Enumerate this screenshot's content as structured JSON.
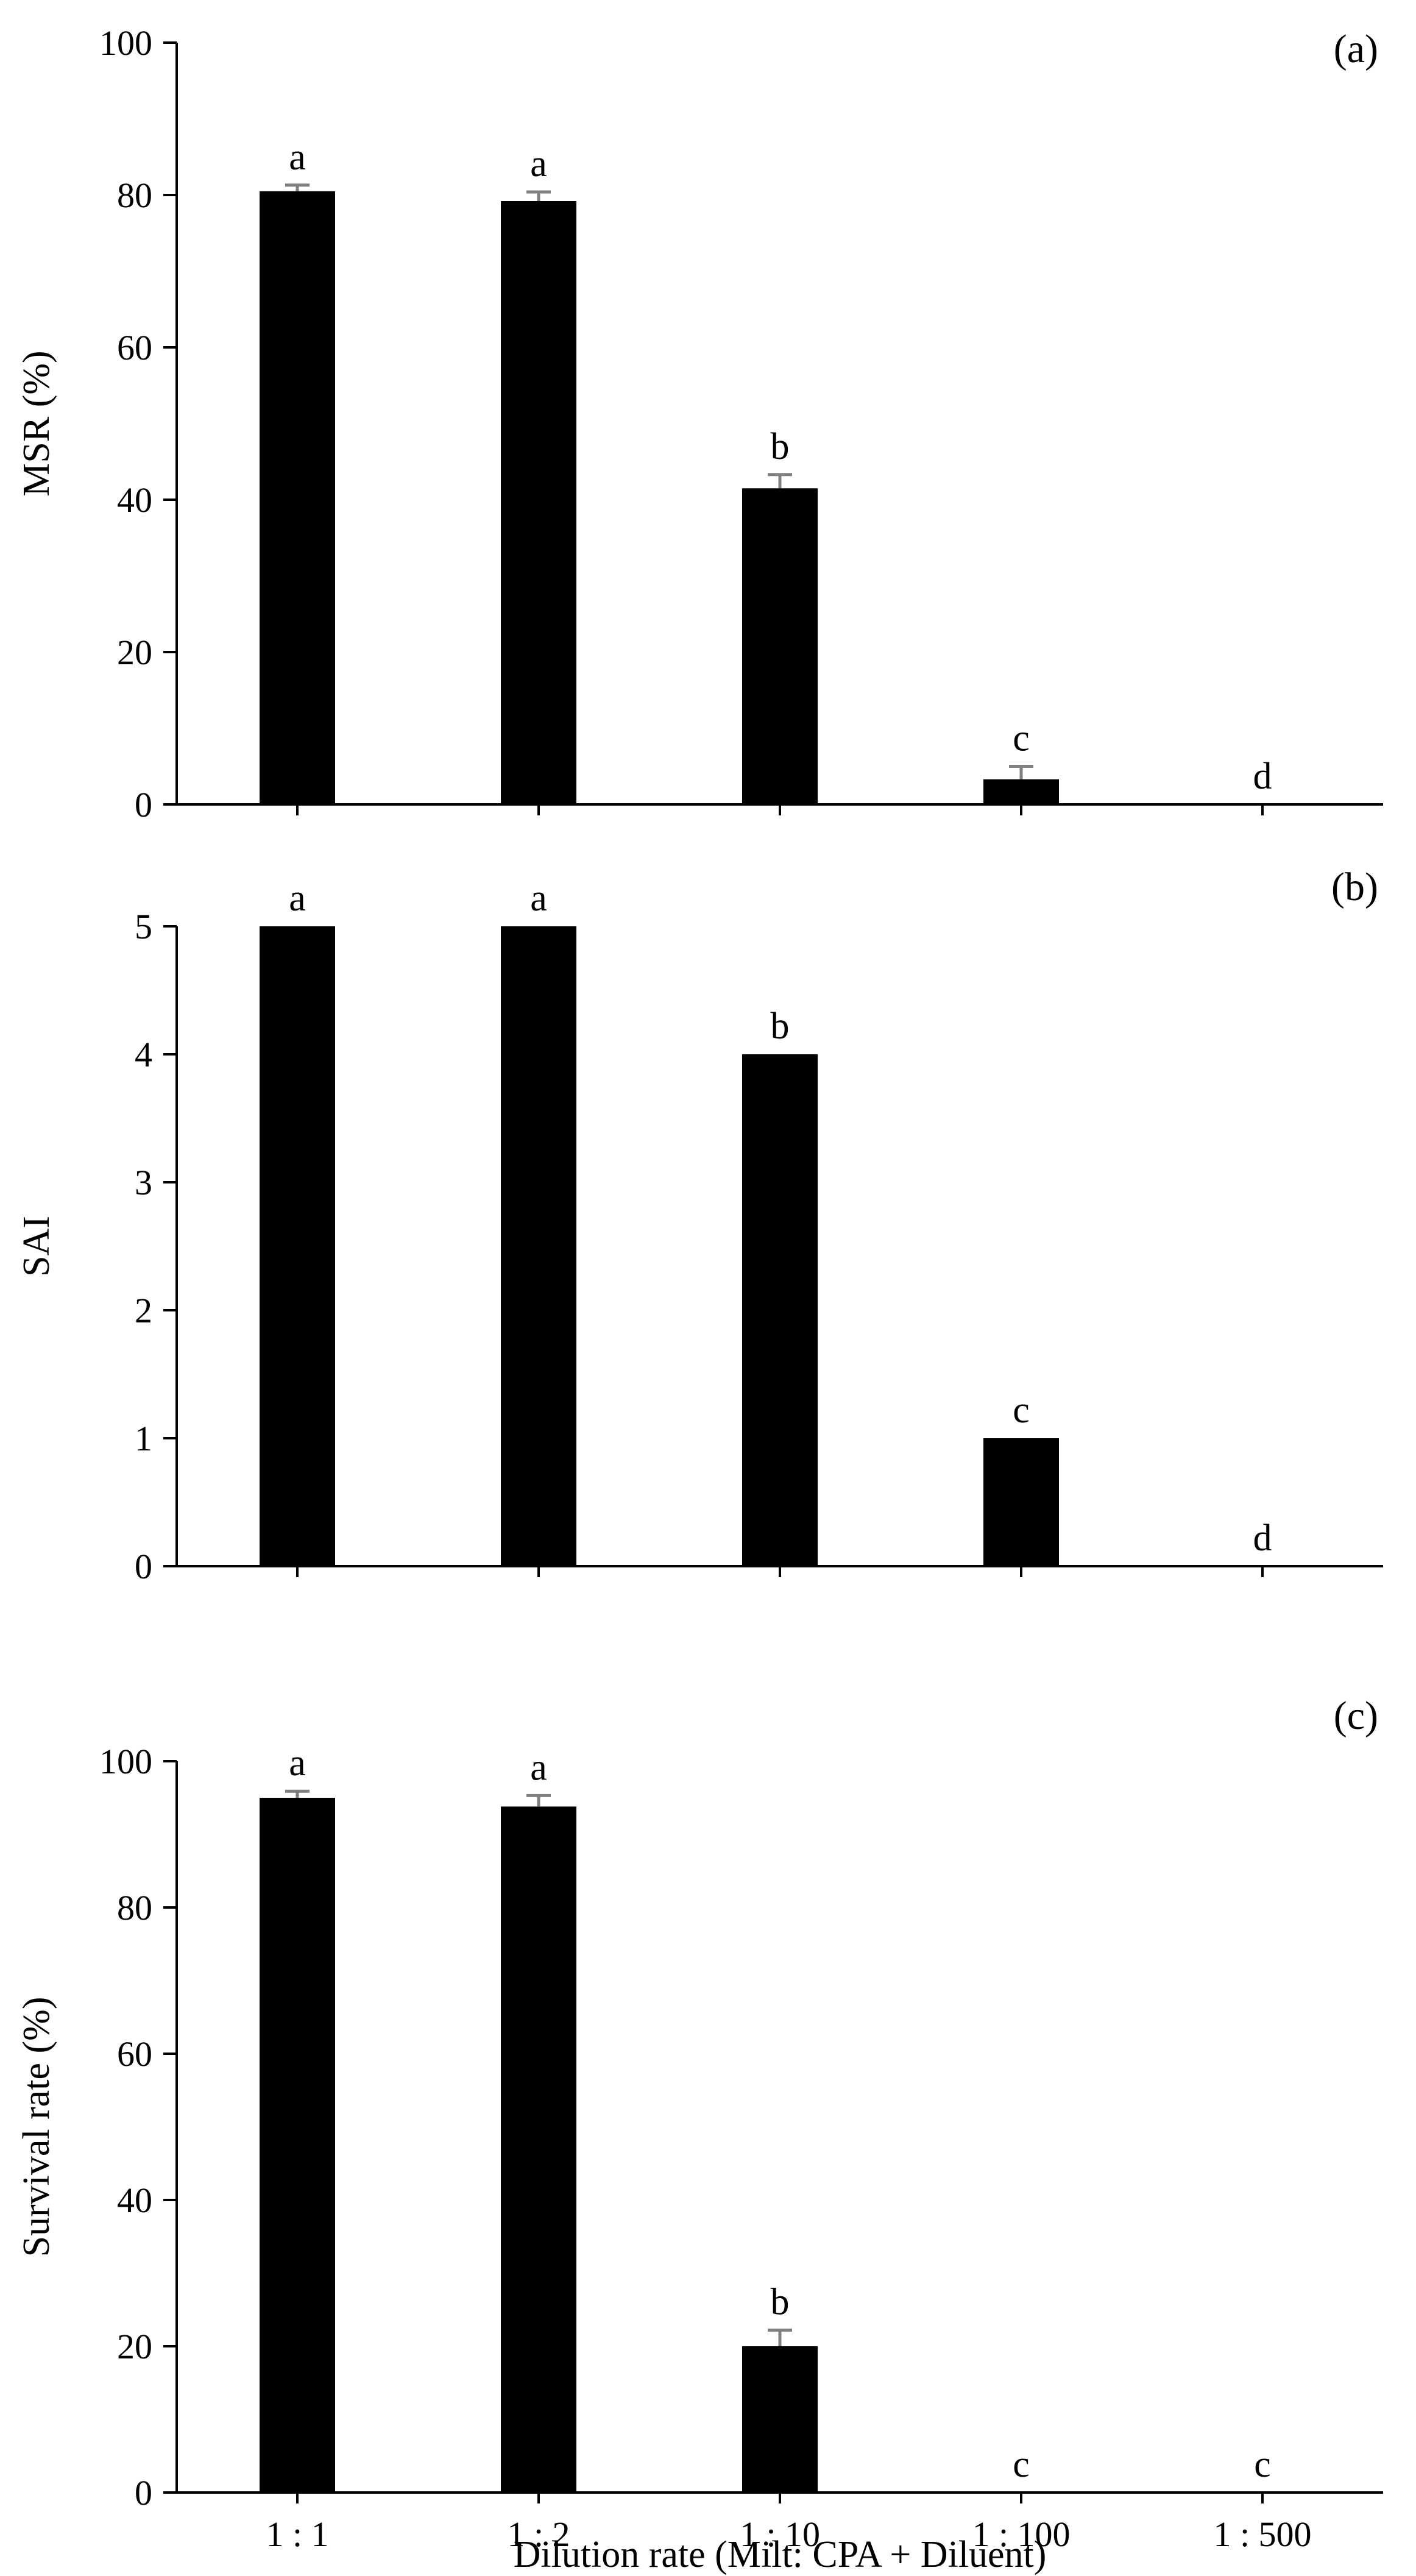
{
  "chart_data": [
    {
      "type": "bar",
      "panel_label": "(a)",
      "categories": [
        "1 : 1",
        "1 : 2",
        "1 : 10",
        "1 : 100",
        "1 : 500"
      ],
      "values": [
        80.5,
        79.2,
        41.5,
        3.3,
        0
      ],
      "errors": [
        0.8,
        1.2,
        1.8,
        1.7,
        0
      ],
      "letters": [
        "a",
        "a",
        "b",
        "c",
        "d"
      ],
      "ylabel": "MSR (%)",
      "xlabel": "",
      "ylim": [
        0,
        100
      ],
      "yticks": [
        "0",
        "20",
        "40",
        "60",
        "80",
        "100"
      ],
      "show_x_labels": false
    },
    {
      "type": "bar",
      "panel_label": "(b)",
      "categories": [
        "1 : 1",
        "1 : 2",
        "1 : 10",
        "1 : 100",
        "1 : 500"
      ],
      "values": [
        5,
        5,
        4,
        1,
        0
      ],
      "errors": [
        0,
        0,
        0,
        0,
        0
      ],
      "letters": [
        "a",
        "a",
        "b",
        "c",
        "d"
      ],
      "ylabel": "SAI",
      "xlabel": "",
      "ylim": [
        0,
        5
      ],
      "yticks": [
        "0",
        "1",
        "2",
        "3",
        "4",
        "5"
      ],
      "show_x_labels": false
    },
    {
      "type": "bar",
      "panel_label": "(c)",
      "categories": [
        "1 : 1",
        "1 : 2",
        "1 : 10",
        "1 : 100",
        "1 : 500"
      ],
      "values": [
        95,
        93.8,
        20,
        0,
        0
      ],
      "errors": [
        0.9,
        1.5,
        2.2,
        0,
        0
      ],
      "letters": [
        "a",
        "a",
        "b",
        "c",
        "c"
      ],
      "ylabel": "Survival rate (%)",
      "xlabel": "Dilution rate (Milt: CPA + Diluent)",
      "ylim": [
        0,
        100
      ],
      "yticks": [
        "0",
        "20",
        "40",
        "60",
        "80",
        "100"
      ],
      "show_x_labels": true
    }
  ],
  "colors": {
    "bar": "#000000",
    "error_bar": "#7f7f7f",
    "axis": "#000000"
  }
}
